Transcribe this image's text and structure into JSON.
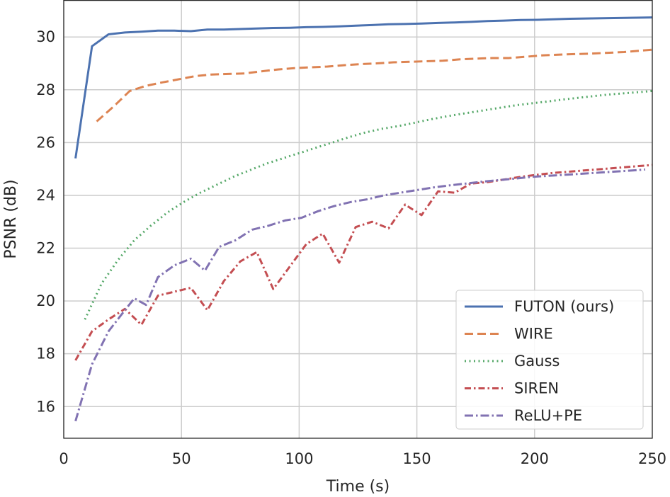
{
  "chart_data": {
    "type": "line",
    "xlabel": "Time (s)",
    "ylabel": "PSNR (dB)",
    "xlim": [
      0,
      250
    ],
    "ylim": [
      14.8,
      31.4
    ],
    "xticks": [
      0,
      50,
      100,
      150,
      200,
      250
    ],
    "yticks": [
      16,
      18,
      20,
      22,
      24,
      26,
      28,
      30
    ],
    "grid": true,
    "legend_position": "lower-right",
    "series": [
      {
        "name": "FUTON (ours)",
        "color": "#4c72b0",
        "dash": "solid",
        "x": [
          5,
          12,
          19,
          26,
          33,
          40,
          47,
          54,
          61,
          68,
          75,
          82,
          89,
          96,
          103,
          110,
          117,
          124,
          131,
          138,
          145,
          152,
          159,
          166,
          173,
          180,
          187,
          194,
          201,
          208,
          215,
          222,
          229,
          236,
          243,
          250
        ],
        "y": [
          25.4,
          29.65,
          30.1,
          30.17,
          30.2,
          30.24,
          30.24,
          30.22,
          30.28,
          30.28,
          30.3,
          30.32,
          30.34,
          30.35,
          30.37,
          30.38,
          30.4,
          30.43,
          30.45,
          30.48,
          30.49,
          30.51,
          30.53,
          30.55,
          30.57,
          30.6,
          30.62,
          30.64,
          30.65,
          30.67,
          30.69,
          30.7,
          30.71,
          30.72,
          30.73,
          30.74
        ]
      },
      {
        "name": "WIRE",
        "color": "#dd8452",
        "dash": "dashed",
        "x": [
          14,
          21,
          28,
          35,
          42,
          49,
          56,
          63,
          70,
          77,
          84,
          91,
          98,
          105,
          112,
          119,
          126,
          133,
          140,
          147,
          154,
          161,
          168,
          175,
          182,
          189,
          196,
          203,
          210,
          217,
          224,
          231,
          238,
          245,
          250
        ],
        "y": [
          26.8,
          27.35,
          27.95,
          28.15,
          28.28,
          28.4,
          28.52,
          28.58,
          28.6,
          28.62,
          28.7,
          28.77,
          28.82,
          28.85,
          28.88,
          28.93,
          28.97,
          29.0,
          29.04,
          29.06,
          29.08,
          29.1,
          29.15,
          29.18,
          29.2,
          29.2,
          29.25,
          29.3,
          29.33,
          29.35,
          29.37,
          29.4,
          29.43,
          29.48,
          29.52
        ]
      },
      {
        "name": "Gauss",
        "color": "#55a868",
        "dash": "dotted",
        "x": [
          9,
          16,
          23,
          30,
          37,
          44,
          51,
          58,
          65,
          72,
          79,
          86,
          93,
          100,
          107,
          114,
          121,
          128,
          135,
          142,
          149,
          156,
          163,
          170,
          177,
          184,
          191,
          198,
          205,
          212,
          219,
          226,
          233,
          240,
          247,
          250
        ],
        "y": [
          19.3,
          20.65,
          21.55,
          22.3,
          22.85,
          23.35,
          23.75,
          24.1,
          24.4,
          24.7,
          24.95,
          25.2,
          25.4,
          25.6,
          25.8,
          26.0,
          26.2,
          26.38,
          26.52,
          26.62,
          26.75,
          26.88,
          27.0,
          27.1,
          27.2,
          27.3,
          27.4,
          27.48,
          27.55,
          27.63,
          27.7,
          27.77,
          27.83,
          27.88,
          27.93,
          27.96
        ]
      },
      {
        "name": "SIREN",
        "color": "#c44e52",
        "dash": "dashdot",
        "x": [
          5,
          12,
          19,
          26,
          33,
          40,
          47,
          54,
          61,
          68,
          75,
          82,
          89,
          96,
          103,
          110,
          117,
          124,
          131,
          138,
          145,
          152,
          159,
          166,
          173,
          180,
          187,
          194,
          201,
          208,
          215,
          222,
          229,
          236,
          243,
          250
        ],
        "y": [
          17.75,
          18.85,
          19.3,
          19.7,
          19.1,
          20.2,
          20.35,
          20.5,
          19.65,
          20.75,
          21.5,
          21.85,
          20.45,
          21.3,
          22.15,
          22.55,
          21.45,
          22.8,
          23.0,
          22.75,
          23.65,
          23.25,
          24.15,
          24.1,
          24.45,
          24.5,
          24.6,
          24.7,
          24.78,
          24.85,
          24.9,
          24.95,
          25.0,
          25.05,
          25.1,
          25.15
        ]
      },
      {
        "name": "ReLU+PE",
        "color": "#8172b2",
        "dash": "dashdotdot",
        "x": [
          5,
          12,
          19,
          26,
          30,
          35,
          40,
          47,
          54,
          60,
          66,
          73,
          80,
          87,
          94,
          101,
          108,
          115,
          122,
          129,
          136,
          143,
          150,
          157,
          164,
          171,
          178,
          185,
          192,
          199,
          206,
          213,
          220,
          227,
          234,
          241,
          247
        ],
        "y": [
          15.45,
          17.6,
          18.85,
          19.65,
          20.1,
          19.85,
          20.9,
          21.35,
          21.6,
          21.15,
          22.05,
          22.3,
          22.7,
          22.85,
          23.05,
          23.15,
          23.4,
          23.6,
          23.75,
          23.85,
          24.0,
          24.1,
          24.2,
          24.3,
          24.38,
          24.45,
          24.52,
          24.58,
          24.64,
          24.7,
          24.74,
          24.78,
          24.82,
          24.86,
          24.9,
          24.94,
          24.98
        ]
      }
    ]
  }
}
